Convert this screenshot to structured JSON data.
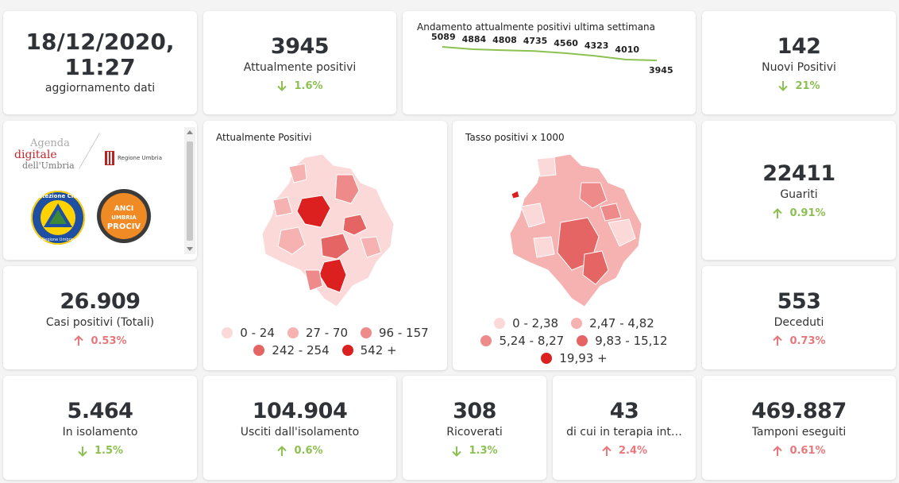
{
  "updated": {
    "value": "18/12/2020, 11:27",
    "label": "aggiornamento dati"
  },
  "attualmente_positivi": {
    "value": "3945",
    "label": "Attualmente positivi",
    "change": "1.6%",
    "direction": "down"
  },
  "trend": {
    "title": "Andamento attualmente positivi ultima settimana",
    "values": [
      5089,
      4884,
      4808,
      4735,
      4560,
      4323,
      4010,
      3945
    ],
    "labels": [
      "5089",
      "4884",
      "4808",
      "4735",
      "4560",
      "4323",
      "4010",
      "3945"
    ],
    "line_color": "#8cc152"
  },
  "nuovi_positivi": {
    "value": "142",
    "label": "Nuovi Positivi",
    "change": "21%",
    "direction": "down"
  },
  "logos": {
    "agenda_line1": "Agenda",
    "agenda_line2": "digitale",
    "agenda_line3": "dell'Umbria",
    "regione": "Regione Umbria",
    "protezione_civile": "Protezione Civile",
    "protezione_sub": "Regione Umbria",
    "anci_line1": "ANCI",
    "anci_line2": "UMBRIA",
    "anci_line3": "PROCIV"
  },
  "map_positivi": {
    "title": "Attualmente Positivi",
    "legend": [
      {
        "label": "0 - 24",
        "color": "#fbd9d9"
      },
      {
        "label": "27 - 70",
        "color": "#f6b1b1"
      },
      {
        "label": "96 - 157",
        "color": "#ee8a8a"
      },
      {
        "label": "242 - 254",
        "color": "#e56464"
      },
      {
        "label": "542 +",
        "color": "#dc1f1f"
      }
    ]
  },
  "map_tasso": {
    "title": "Tasso positivi x 1000",
    "legend": [
      {
        "label": "0 - 2,38",
        "color": "#fbd9d9"
      },
      {
        "label": "2,47 - 4,82",
        "color": "#f6b1b1"
      },
      {
        "label": "5,24 - 8,27",
        "color": "#ee8a8a"
      },
      {
        "label": "9,83 - 15,12",
        "color": "#e56464"
      },
      {
        "label": "19,93 +",
        "color": "#dc1f1f"
      }
    ]
  },
  "guariti": {
    "value": "22411",
    "label": "Guariti",
    "change": "0.91%",
    "direction": "up-good"
  },
  "casi_totali": {
    "value": "26.909",
    "label": "Casi positivi (Totali)",
    "change": "0.53%",
    "direction": "up"
  },
  "deceduti": {
    "value": "553",
    "label": "Deceduti",
    "change": "0.73%",
    "direction": "up"
  },
  "isolamento": {
    "value": "5.464",
    "label": "In isolamento",
    "change": "1.5%",
    "direction": "down"
  },
  "usciti": {
    "value": "104.904",
    "label": "Usciti dall'isolamento",
    "change": "0.6%",
    "direction": "up-good"
  },
  "ricoverati": {
    "value": "308",
    "label": "Ricoverati",
    "change": "1.3%",
    "direction": "down"
  },
  "terapia": {
    "value": "43",
    "label": "di cui in terapia int…",
    "change": "2.4%",
    "direction": "up"
  },
  "tamponi": {
    "value": "469.887",
    "label": "Tamponi eseguiti",
    "change": "0.61%",
    "direction": "up"
  },
  "colors": {
    "good": "#8cc152",
    "bad": "#e8787c"
  }
}
